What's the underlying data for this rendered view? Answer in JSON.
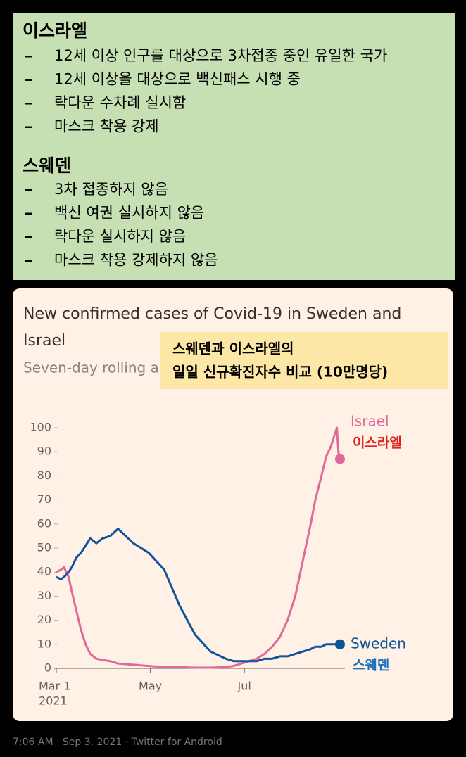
{
  "israel_box": {
    "heading": "이스라엘",
    "items": [
      "12세 이상 인구를 대상으로 3차접종 중인 유일한 국가",
      "12세 이상을 대상으로 백신패스 시행 중",
      "락다운 수차례 실시함",
      "마스크 착용 강제"
    ]
  },
  "sweden_box": {
    "heading": "스웨덴",
    "items": [
      "3차 접종하지 않음",
      "백신 여권 실시하지 않음",
      "락다운 실시하지 않음",
      "마스크 착용 강제하지 않음"
    ]
  },
  "chart_data": {
    "type": "line",
    "title_lines": [
      "New confirmed cases of Covid-19 in Sweden and",
      "Israel"
    ],
    "subtitle": "Seven-day rolling a",
    "annotation": [
      "스웨덴과 이스라엘의",
      "일일 신규확진자수 비교 (10만명당)"
    ],
    "x": [
      0,
      3,
      5,
      8,
      10,
      13,
      16,
      19,
      22,
      26,
      30,
      35,
      40,
      50,
      60,
      70,
      80,
      90,
      100,
      110,
      115,
      120,
      125,
      130,
      135,
      140,
      145,
      150,
      155,
      160,
      165,
      168,
      172,
      175,
      178,
      181,
      182,
      183,
      184
    ],
    "series": [
      {
        "name": "Israel",
        "label_ko": "이스라엘",
        "color": "#e0689a",
        "label_ko_color": "#e0201c",
        "values": [
          40,
          41,
          42,
          38,
          32,
          24,
          16,
          10,
          6,
          4,
          3.5,
          3,
          2,
          1.5,
          1,
          0.5,
          0.5,
          0.3,
          0.3,
          0.5,
          1,
          2,
          3,
          4,
          6,
          9,
          13,
          20,
          30,
          45,
          60,
          70,
          80,
          88,
          92,
          98,
          100,
          90,
          87
        ]
      },
      {
        "name": "Sweden",
        "label_ko": "스웨덴",
        "color": "#0f5499",
        "label_ko_color": "#1f6fbf",
        "values": [
          38,
          37,
          38,
          40,
          42,
          46,
          48,
          51,
          54,
          52,
          54,
          55,
          58,
          52,
          48,
          41,
          26,
          14,
          7,
          4,
          3,
          3,
          3,
          3,
          4,
          4,
          5,
          5,
          6,
          7,
          8,
          9,
          9,
          10,
          10,
          10,
          10,
          10,
          10
        ]
      }
    ],
    "xlim": [
      -1,
      200
    ],
    "xticks": [
      {
        "value": 0,
        "label": "Mar 1"
      },
      {
        "value": 61,
        "label": "May"
      },
      {
        "value": 122,
        "label": "Jul"
      }
    ],
    "x_year_label": "2021",
    "ylim": [
      0,
      100
    ],
    "yticks": [
      0,
      10,
      20,
      30,
      40,
      50,
      60,
      70,
      80,
      90,
      100
    ],
    "grid": false
  },
  "footer": "7:06 AM · Sep 3, 2021 · Twitter for Android"
}
